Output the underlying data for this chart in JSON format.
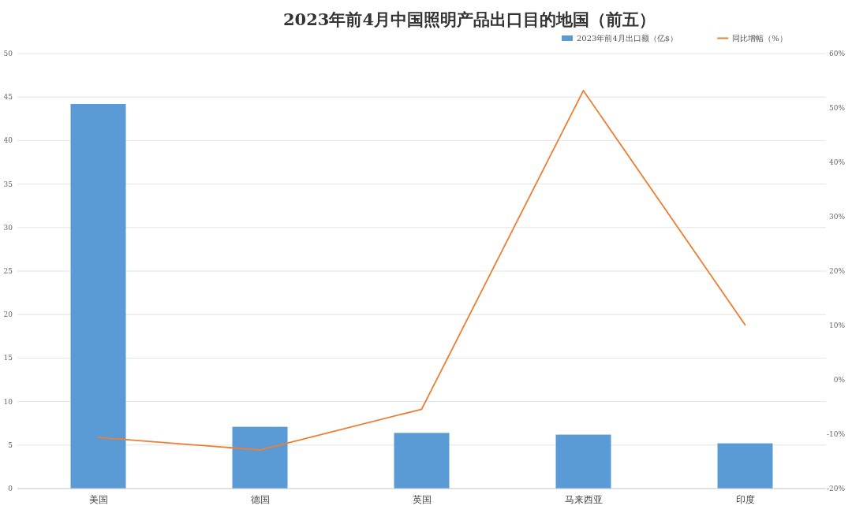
{
  "chart_data": {
    "type": "bar",
    "title": "2023年前4月中国照明产品出口目的地国（前五）",
    "categories": [
      "美国",
      "德国",
      "英国",
      "马来西亚",
      "印度"
    ],
    "series": [
      {
        "name": "2023年前4月出口额（亿$）",
        "color": "#5b9bd5",
        "values": [
          44.2,
          7.1,
          6.4,
          6.2,
          5.2
        ]
      },
      {
        "name": "同比增幅（%）",
        "type": "line",
        "axis": "y2",
        "color": "#ed7d31",
        "values": [
          -10.6,
          -12.9,
          -5.4,
          53.2,
          10.1
        ]
      }
    ],
    "ylim": [
      0,
      50
    ],
    "yticks": [
      0,
      5,
      10,
      15,
      20,
      25,
      30,
      35,
      40,
      45,
      50
    ],
    "y2lim": [
      -20,
      60
    ],
    "y2ticks": [
      {
        "value": -20,
        "label": "-20%"
      },
      {
        "value": -10,
        "label": "-10%"
      },
      {
        "value": 0,
        "label": "0%"
      },
      {
        "value": 10,
        "label": "10%"
      },
      {
        "value": 20,
        "label": "20%"
      },
      {
        "value": 30,
        "label": "30%"
      },
      {
        "value": 40,
        "label": "40%"
      },
      {
        "value": 50,
        "label": "50%"
      },
      {
        "value": 60,
        "label": "60%"
      }
    ],
    "grid": "y",
    "legend": "top right"
  }
}
